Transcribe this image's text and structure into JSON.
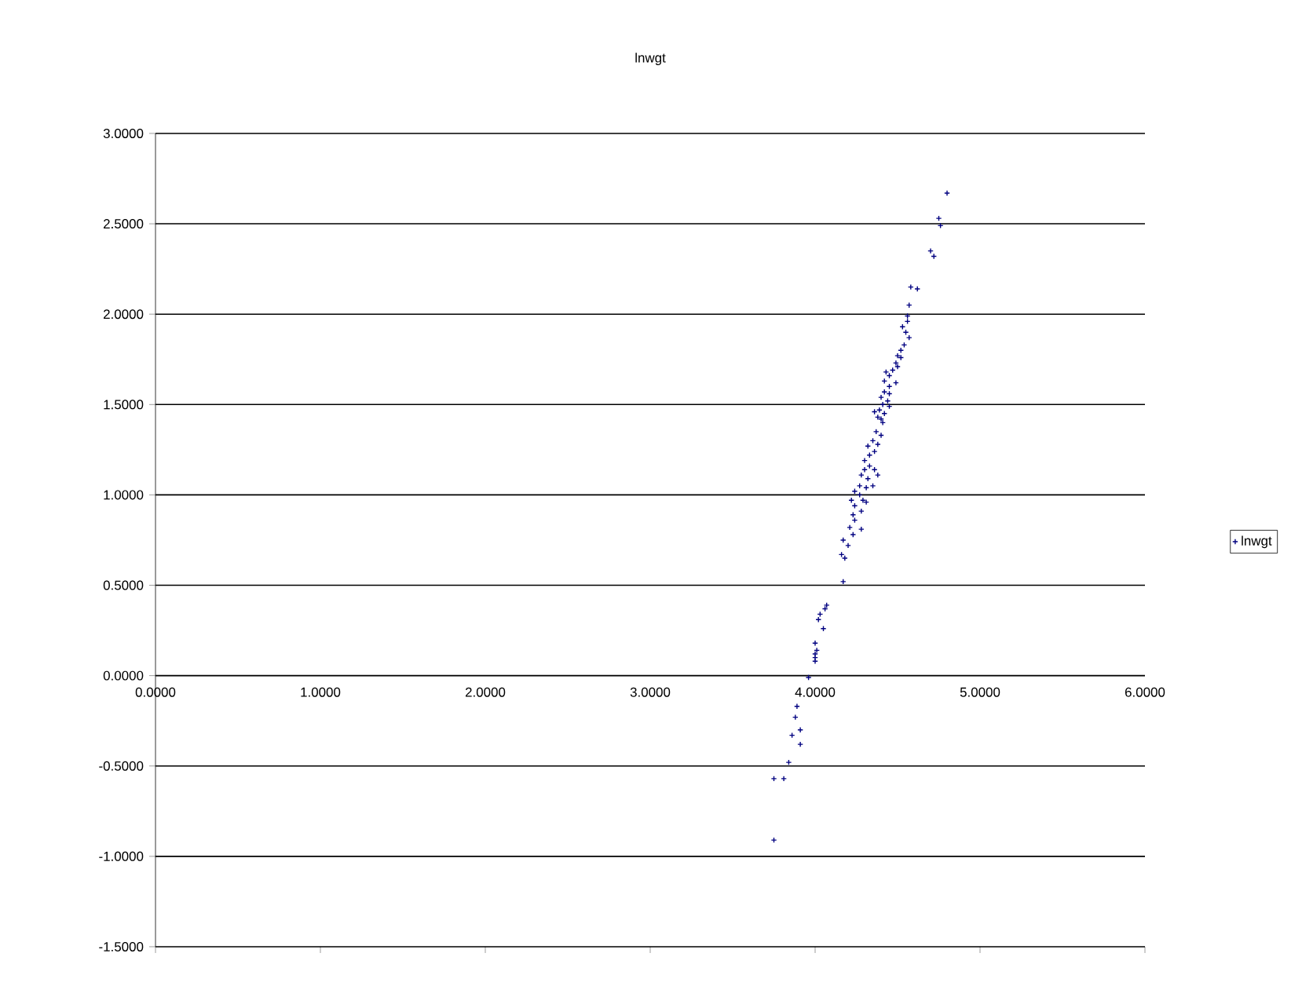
{
  "chart_data": {
    "type": "scatter",
    "title": "lnwgt",
    "x": [
      4.8,
      4.75,
      4.76,
      4.7,
      4.72,
      4.58,
      4.62,
      4.57,
      4.56,
      4.56,
      4.53,
      4.55,
      4.57,
      4.54,
      4.52,
      4.5,
      4.52,
      4.49,
      4.5,
      4.47,
      4.43,
      4.45,
      4.42,
      4.49,
      4.45,
      4.42,
      4.45,
      4.4,
      4.44,
      4.41,
      4.45,
      4.39,
      4.42,
      4.36,
      4.4,
      4.38,
      4.41,
      4.37,
      4.4,
      4.35,
      4.38,
      4.32,
      4.36,
      4.33,
      4.3,
      4.33,
      4.3,
      4.36,
      4.38,
      4.28,
      4.32,
      4.35,
      4.27,
      4.31,
      4.24,
      4.27,
      4.22,
      4.29,
      4.24,
      4.31,
      4.28,
      4.23,
      4.24,
      4.21,
      4.28,
      4.23,
      4.17,
      4.2,
      4.16,
      4.18,
      4.17,
      4.07,
      4.06,
      4.03,
      4.02,
      4.05,
      4.0,
      4.01,
      4.0,
      4.0,
      4.0,
      3.96,
      3.89,
      3.88,
      3.91,
      3.86,
      3.91,
      3.84,
      3.75,
      3.81,
      3.75
    ],
    "series": [
      {
        "name": "lnwgt",
        "color": "#000080",
        "values": [
          2.67,
          2.53,
          2.49,
          2.35,
          2.32,
          2.15,
          2.14,
          2.05,
          1.99,
          1.96,
          1.93,
          1.9,
          1.87,
          1.83,
          1.8,
          1.77,
          1.76,
          1.73,
          1.71,
          1.69,
          1.68,
          1.66,
          1.63,
          1.62,
          1.6,
          1.57,
          1.56,
          1.54,
          1.52,
          1.5,
          1.49,
          1.47,
          1.45,
          1.46,
          1.42,
          1.43,
          1.4,
          1.35,
          1.33,
          1.3,
          1.28,
          1.27,
          1.24,
          1.22,
          1.19,
          1.16,
          1.14,
          1.14,
          1.11,
          1.11,
          1.09,
          1.05,
          1.05,
          1.04,
          1.02,
          1.0,
          0.97,
          0.97,
          0.94,
          0.96,
          0.91,
          0.89,
          0.86,
          0.82,
          0.81,
          0.78,
          0.75,
          0.72,
          0.67,
          0.65,
          0.52,
          0.39,
          0.37,
          0.34,
          0.31,
          0.26,
          0.18,
          0.14,
          0.12,
          0.1,
          0.08,
          -0.01,
          -0.17,
          -0.23,
          -0.3,
          -0.33,
          -0.38,
          -0.48,
          -0.57,
          -0.57,
          -0.91
        ]
      }
    ],
    "xlim": [
      0,
      6
    ],
    "xticks": [
      {
        "value": 0,
        "label": "0.0000"
      },
      {
        "value": 1,
        "label": "1.0000"
      },
      {
        "value": 2,
        "label": "2.0000"
      },
      {
        "value": 3,
        "label": "3.0000"
      },
      {
        "value": 4,
        "label": "4.0000"
      },
      {
        "value": 5,
        "label": "5.0000"
      },
      {
        "value": 6,
        "label": "6.0000"
      }
    ],
    "ylim": [
      -1.5,
      3.0
    ],
    "yticks": [
      {
        "value": -1.5,
        "label": "-1.5000"
      },
      {
        "value": -1,
        "label": "-1.0000"
      },
      {
        "value": -0.5,
        "label": "-0.5000"
      },
      {
        "value": 0,
        "label": "0.0000"
      },
      {
        "value": 0.5,
        "label": "0.5000"
      },
      {
        "value": 1,
        "label": "1.0000"
      },
      {
        "value": 1.5,
        "label": "1.5000"
      },
      {
        "value": 2,
        "label": "2.0000"
      },
      {
        "value": 2.5,
        "label": "2.5000"
      },
      {
        "value": 3,
        "label": "3.0000"
      }
    ],
    "grid": "y",
    "legend": "right",
    "marker": "cross"
  }
}
